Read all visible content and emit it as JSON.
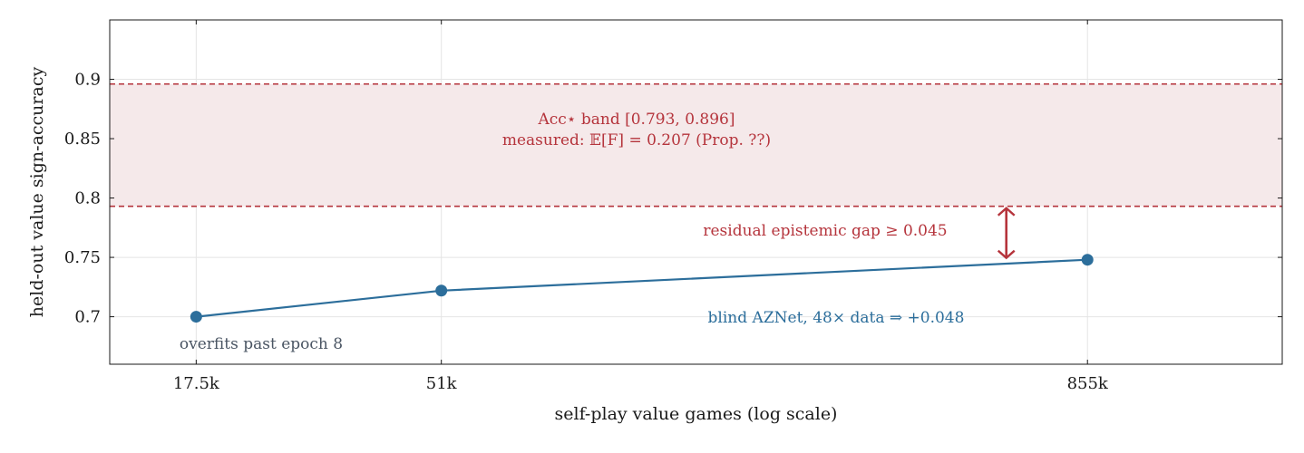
{
  "chart_data": {
    "type": "line",
    "xlabel": "self-play value games (log scale)",
    "ylabel": "held-out value sign-accuracy",
    "x_scale": "log",
    "xlim": [
      12000,
      2000000
    ],
    "ylim": [
      0.66,
      0.95
    ],
    "x_ticks": [
      {
        "value": 17500,
        "label": "17.5k"
      },
      {
        "value": 51000,
        "label": "51k"
      },
      {
        "value": 855000,
        "label": "855k"
      }
    ],
    "y_ticks": [
      {
        "value": 0.7,
        "label": "0.7"
      },
      {
        "value": 0.75,
        "label": "0.75"
      },
      {
        "value": 0.8,
        "label": "0.8"
      },
      {
        "value": 0.85,
        "label": "0.85"
      },
      {
        "value": 0.9,
        "label": "0.9"
      }
    ],
    "grid": true,
    "series": [
      {
        "color": "#2c6e9b",
        "x": [
          17500,
          51000,
          855000
        ],
        "y": [
          0.7,
          0.722,
          0.748
        ]
      }
    ],
    "band": {
      "lower": 0.793,
      "upper": 0.896,
      "fill": "#f5e9ea",
      "line_color": "#b5343c",
      "label_line1": "Acc⋆ band [0.793, 0.896]",
      "label_line2": "measured: 𝔼[F] = 0.207 (Prop. ??)"
    },
    "gap_arrow": {
      "x": 600000,
      "from": 0.748,
      "to": 0.793,
      "color": "#b5343c",
      "label": "residual epistemic gap ≥ 0.045"
    },
    "annotations": {
      "blind": "blind AZNet, 48× data ⇒ +0.048",
      "overfit": "overfits past epoch 8",
      "blind_color": "#2c6e9b",
      "overfit_color": "#4a5563"
    }
  }
}
